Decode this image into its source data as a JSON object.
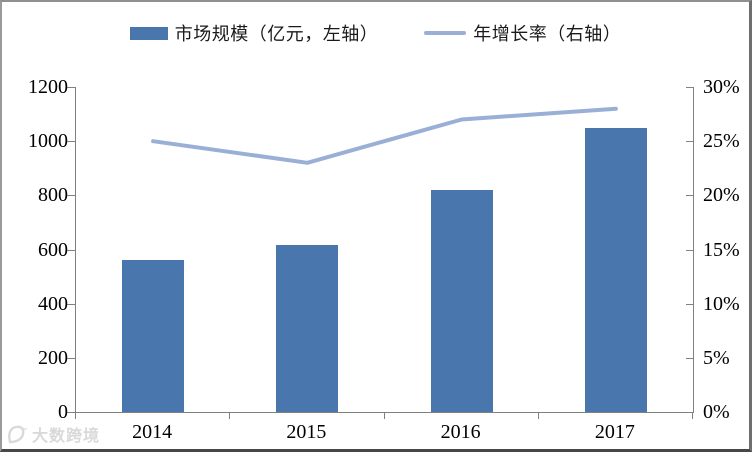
{
  "legend": {
    "items": [
      {
        "label": "市场规模（亿元，左轴）",
        "swatch": "bar",
        "color": "#4a76ae"
      },
      {
        "label": "年增长率（右轴）",
        "swatch": "line",
        "color": "#9aafd6"
      }
    ]
  },
  "watermark": {
    "text": "大数跨境",
    "color": "#d9d9d9"
  },
  "chart_data": {
    "type": "bar",
    "subtype": "bar-line-combo",
    "categories": [
      "2014",
      "2015",
      "2016",
      "2017"
    ],
    "series": [
      {
        "name": "市场规模（亿元，左轴）",
        "type": "bar",
        "axis": "left",
        "values": [
          560,
          615,
          820,
          1050
        ],
        "color": "#4a76ae"
      },
      {
        "name": "年增长率（右轴）",
        "type": "line",
        "axis": "right",
        "values": [
          25,
          23,
          27,
          28
        ],
        "unit": "%",
        "color": "#9aafd6"
      }
    ],
    "left_axis": {
      "min": 0,
      "max": 1200,
      "step": 200,
      "ticks": [
        "0",
        "200",
        "400",
        "600",
        "800",
        "1000",
        "1200"
      ]
    },
    "right_axis": {
      "min": 0,
      "max": 30,
      "step": 5,
      "ticks": [
        "0%",
        "5%",
        "10%",
        "15%",
        "20%",
        "25%",
        "30%"
      ]
    },
    "title": "",
    "xlabel": "",
    "ylabel": "",
    "grid": false,
    "legend_position": "top"
  }
}
